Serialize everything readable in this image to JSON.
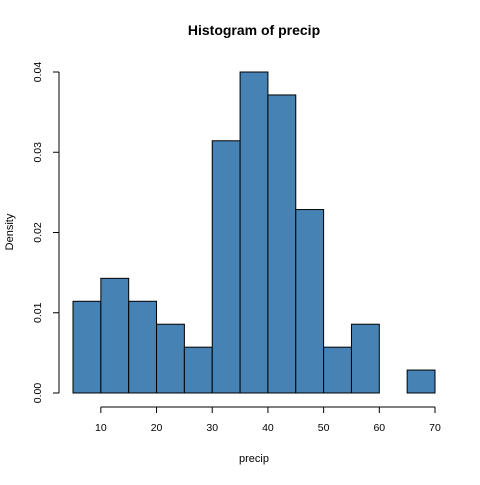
{
  "chart_data": {
    "type": "bar",
    "title": "Histogram of precip",
    "xlabel": "precip",
    "ylabel": "Density",
    "bar_color": "#4682b4",
    "border_color": "#000000",
    "xlim": [
      5,
      70
    ],
    "ylim": [
      0,
      0.04
    ],
    "xticks": [
      10,
      20,
      30,
      40,
      50,
      60,
      70
    ],
    "yticks": [
      "0.00",
      "0.01",
      "0.02",
      "0.03",
      "0.04"
    ],
    "bin_edges": [
      5,
      10,
      15,
      20,
      25,
      30,
      35,
      40,
      45,
      50,
      55,
      60,
      65,
      70
    ],
    "values": [
      0.01143,
      0.01429,
      0.01143,
      0.00857,
      0.00571,
      0.03143,
      0.04,
      0.03714,
      0.02286,
      0.00571,
      0.00857,
      0.0,
      0.00286
    ],
    "grid": false,
    "legend": "none"
  }
}
